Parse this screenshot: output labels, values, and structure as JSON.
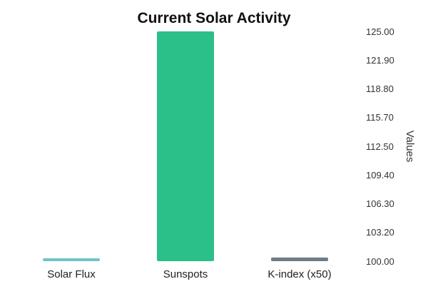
{
  "chart_data": {
    "type": "bar",
    "title": "Current Solar Activity",
    "xlabel": "",
    "ylabel": "Values",
    "categories": [
      "Solar Flux",
      "Sunspots",
      "K-index (x50)"
    ],
    "values": [
      100.3,
      125.0,
      100.4
    ],
    "colors": [
      "#6cc5c8",
      "#2bbf8a",
      "#6f7c85"
    ],
    "ylim": [
      100.0,
      125.0
    ],
    "yticks": [
      "100.00",
      "103.20",
      "106.30",
      "109.40",
      "112.50",
      "115.70",
      "118.80",
      "121.90",
      "125.00"
    ],
    "y_axis_position": "right",
    "grid": false,
    "legend": "none"
  }
}
